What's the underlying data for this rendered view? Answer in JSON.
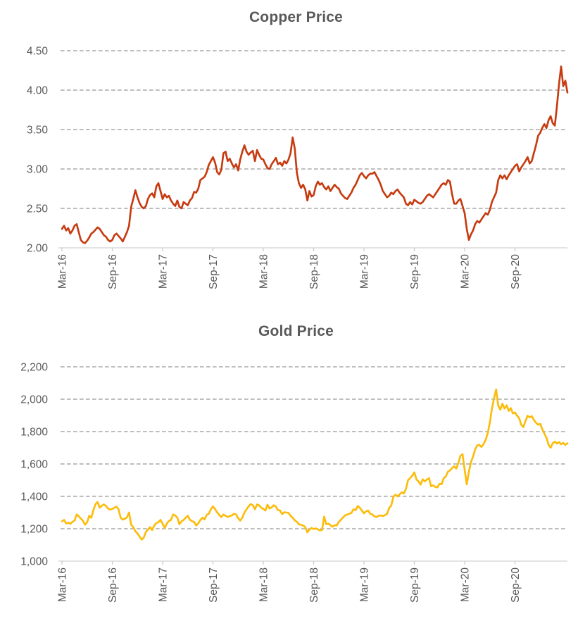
{
  "style": {
    "background": "#FFFFFF",
    "grid_color": "#989898",
    "axis_color": "#D2D2D2",
    "tick_color": "#C9C9C9",
    "label_color": "#595959",
    "title_color": "#595959"
  },
  "chart_data": [
    {
      "type": "line",
      "series_name": "copper",
      "title": "Copper Price",
      "line_color": "#C63B10",
      "grid": "dashed-horizontal",
      "legend": "none",
      "ylim": [
        2.0,
        4.5
      ],
      "yticks": [
        {
          "value": 4.5,
          "label": "4.50"
        },
        {
          "value": 4.0,
          "label": "4.00"
        },
        {
          "value": 3.5,
          "label": "3.50"
        },
        {
          "value": 3.0,
          "label": "3.00"
        },
        {
          "value": 2.5,
          "label": "2.50"
        },
        {
          "value": 2.0,
          "label": "2.00"
        }
      ],
      "xticks": [
        "Mar-16",
        "Sep-16",
        "Mar-17",
        "Sep-17",
        "Mar-18",
        "Sep-18",
        "Mar-19",
        "Sep-19",
        "Mar-20",
        "Sep-20"
      ],
      "points_per_tick": 24,
      "values": [
        2.24,
        2.28,
        2.22,
        2.25,
        2.18,
        2.22,
        2.28,
        2.3,
        2.2,
        2.1,
        2.07,
        2.06,
        2.09,
        2.13,
        2.18,
        2.2,
        2.23,
        2.26,
        2.24,
        2.2,
        2.16,
        2.14,
        2.1,
        2.08,
        2.1,
        2.16,
        2.18,
        2.15,
        2.12,
        2.08,
        2.14,
        2.2,
        2.28,
        2.52,
        2.62,
        2.73,
        2.64,
        2.57,
        2.52,
        2.5,
        2.53,
        2.62,
        2.67,
        2.69,
        2.64,
        2.78,
        2.82,
        2.72,
        2.62,
        2.68,
        2.64,
        2.66,
        2.6,
        2.56,
        2.53,
        2.6,
        2.52,
        2.5,
        2.58,
        2.56,
        2.54,
        2.6,
        2.63,
        2.71,
        2.7,
        2.75,
        2.86,
        2.88,
        2.9,
        2.96,
        3.05,
        3.1,
        3.15,
        3.08,
        2.96,
        2.93,
        2.99,
        3.2,
        3.22,
        3.1,
        3.13,
        3.07,
        3.02,
        3.06,
        2.98,
        3.12,
        3.22,
        3.3,
        3.22,
        3.18,
        3.21,
        3.23,
        3.1,
        3.24,
        3.18,
        3.13,
        3.12,
        3.06,
        3.01,
        3.0,
        3.06,
        3.1,
        3.14,
        3.06,
        3.08,
        3.04,
        3.1,
        3.07,
        3.12,
        3.2,
        3.4,
        3.26,
        2.95,
        2.82,
        2.76,
        2.8,
        2.74,
        2.6,
        2.72,
        2.65,
        2.67,
        2.78,
        2.84,
        2.8,
        2.82,
        2.77,
        2.74,
        2.78,
        2.72,
        2.76,
        2.8,
        2.77,
        2.75,
        2.69,
        2.66,
        2.63,
        2.62,
        2.66,
        2.7,
        2.76,
        2.8,
        2.86,
        2.92,
        2.95,
        2.91,
        2.88,
        2.92,
        2.94,
        2.94,
        2.96,
        2.91,
        2.86,
        2.8,
        2.72,
        2.68,
        2.64,
        2.66,
        2.7,
        2.68,
        2.72,
        2.74,
        2.7,
        2.67,
        2.64,
        2.56,
        2.54,
        2.58,
        2.55,
        2.61,
        2.59,
        2.57,
        2.56,
        2.58,
        2.62,
        2.66,
        2.68,
        2.66,
        2.64,
        2.68,
        2.72,
        2.76,
        2.8,
        2.82,
        2.8,
        2.86,
        2.84,
        2.68,
        2.56,
        2.56,
        2.6,
        2.62,
        2.53,
        2.44,
        2.24,
        2.1,
        2.17,
        2.22,
        2.3,
        2.34,
        2.32,
        2.36,
        2.4,
        2.44,
        2.42,
        2.48,
        2.58,
        2.64,
        2.7,
        2.86,
        2.92,
        2.88,
        2.92,
        2.87,
        2.92,
        2.96,
        3.0,
        3.04,
        3.06,
        2.97,
        3.02,
        3.06,
        3.1,
        3.15,
        3.07,
        3.1,
        3.2,
        3.3,
        3.42,
        3.46,
        3.52,
        3.57,
        3.52,
        3.62,
        3.67,
        3.58,
        3.55,
        3.8,
        4.08,
        4.3,
        4.05,
        4.12,
        3.97
      ]
    },
    {
      "type": "line",
      "series_name": "gold",
      "title": "Gold Price",
      "line_color": "#FBBC0B",
      "grid": "dashed-horizontal",
      "legend": "none",
      "ylim": [
        1000,
        2200
      ],
      "yticks": [
        {
          "value": 2200,
          "label": "2,200"
        },
        {
          "value": 2000,
          "label": "2,000"
        },
        {
          "value": 1800,
          "label": "1,800"
        },
        {
          "value": 1600,
          "label": "1,600"
        },
        {
          "value": 1400,
          "label": "1,400"
        },
        {
          "value": 1200,
          "label": "1,200"
        },
        {
          "value": 1000,
          "label": "1,000"
        }
      ],
      "xticks": [
        "Mar-16",
        "Sep-16",
        "Mar-17",
        "Sep-17",
        "Mar-18",
        "Sep-18",
        "Mar-19",
        "Sep-19",
        "Mar-20",
        "Sep-20"
      ],
      "points_per_tick": 24,
      "values": [
        1245,
        1255,
        1232,
        1238,
        1230,
        1242,
        1250,
        1288,
        1278,
        1262,
        1250,
        1225,
        1240,
        1280,
        1268,
        1315,
        1352,
        1365,
        1330,
        1342,
        1350,
        1340,
        1325,
        1318,
        1322,
        1330,
        1336,
        1320,
        1268,
        1256,
        1262,
        1270,
        1300,
        1225,
        1210,
        1185,
        1170,
        1152,
        1133,
        1145,
        1180,
        1195,
        1210,
        1192,
        1220,
        1235,
        1240,
        1255,
        1230,
        1205,
        1232,
        1248,
        1255,
        1288,
        1282,
        1268,
        1228,
        1245,
        1255,
        1268,
        1280,
        1256,
        1246,
        1242,
        1220,
        1232,
        1255,
        1268,
        1258,
        1285,
        1292,
        1320,
        1338,
        1322,
        1300,
        1285,
        1272,
        1288,
        1280,
        1272,
        1278,
        1282,
        1292,
        1288,
        1265,
        1250,
        1268,
        1300,
        1320,
        1338,
        1352,
        1345,
        1320,
        1350,
        1345,
        1330,
        1322,
        1312,
        1348,
        1325,
        1332,
        1345,
        1336,
        1315,
        1312,
        1290,
        1302,
        1300,
        1298,
        1280,
        1268,
        1252,
        1242,
        1228,
        1224,
        1220,
        1210,
        1178,
        1195,
        1205,
        1198,
        1202,
        1196,
        1190,
        1192,
        1275,
        1228,
        1232,
        1222,
        1212,
        1222,
        1220,
        1242,
        1255,
        1270,
        1282,
        1288,
        1292,
        1298,
        1320,
        1315,
        1340,
        1330,
        1312,
        1295,
        1308,
        1312,
        1292,
        1288,
        1276,
        1272,
        1280,
        1282,
        1278,
        1284,
        1292,
        1328,
        1342,
        1398,
        1410,
        1400,
        1412,
        1425,
        1418,
        1445,
        1500,
        1512,
        1528,
        1548,
        1505,
        1492,
        1472,
        1505,
        1492,
        1504,
        1512,
        1462,
        1468,
        1458,
        1455,
        1478,
        1475,
        1512,
        1522,
        1552,
        1560,
        1575,
        1585,
        1572,
        1605,
        1650,
        1660,
        1565,
        1474,
        1552,
        1610,
        1645,
        1690,
        1715,
        1718,
        1705,
        1722,
        1748,
        1790,
        1855,
        1940,
        2005,
        2060,
        1960,
        1935,
        1972,
        1942,
        1962,
        1928,
        1945,
        1912,
        1918,
        1898,
        1882,
        1842,
        1828,
        1865,
        1898,
        1888,
        1895,
        1872,
        1855,
        1842,
        1848,
        1815,
        1788,
        1762,
        1718,
        1700,
        1728,
        1738,
        1726,
        1735,
        1722,
        1730,
        1718,
        1728
      ]
    }
  ]
}
